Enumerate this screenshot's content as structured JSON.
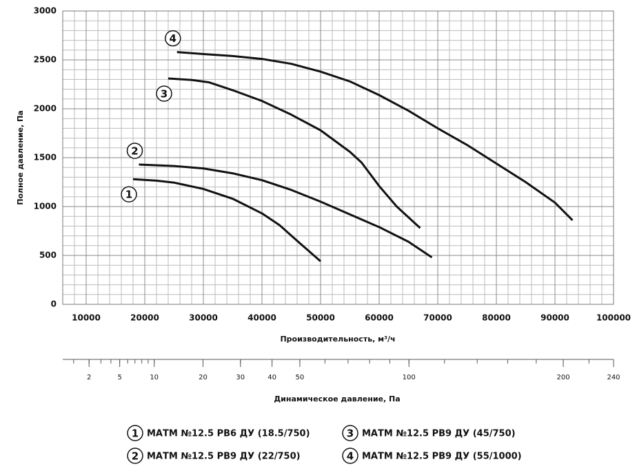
{
  "chart_data": {
    "type": "line",
    "ylabel": "Полное давление, Па",
    "xlabel": "Производительность, м³/ч",
    "xlim": [
      6000,
      100000
    ],
    "xticks": [
      10000,
      20000,
      30000,
      40000,
      50000,
      60000,
      70000,
      80000,
      90000,
      100000
    ],
    "ylim": [
      0,
      3000
    ],
    "yticks": [
      0,
      500,
      1000,
      1500,
      2000,
      2500,
      3000
    ],
    "grid": true,
    "series": [
      {
        "marker": "1",
        "name": "МАТМ №12.5 РВ6 ДУ (18.5/750)",
        "color": "#111111",
        "x": [
          18000,
          22000,
          25000,
          30000,
          35000,
          40000,
          43000,
          46000,
          50000
        ],
        "values": [
          1280,
          1265,
          1245,
          1180,
          1080,
          930,
          810,
          650,
          440
        ]
      },
      {
        "marker": "2",
        "name": "МАТМ №12.5 РВ9 ДУ (22/750)",
        "color": "#111111",
        "x": [
          19000,
          25000,
          30000,
          35000,
          40000,
          45000,
          50000,
          55000,
          60000,
          65000,
          69000
        ],
        "values": [
          1430,
          1415,
          1390,
          1340,
          1270,
          1170,
          1050,
          920,
          790,
          640,
          480
        ]
      },
      {
        "marker": "3",
        "name": "МАТМ №12.5 РВ9 ДУ (45/750)",
        "color": "#111111",
        "x": [
          24000,
          28000,
          31000,
          35000,
          40000,
          45000,
          50000,
          55000,
          57000,
          60000,
          63000,
          67000
        ],
        "values": [
          2310,
          2295,
          2270,
          2190,
          2080,
          1940,
          1780,
          1560,
          1450,
          1210,
          1000,
          780
        ]
      },
      {
        "marker": "4",
        "name": "МАТМ №12.5 РВ9 ДУ (55/1000)",
        "color": "#111111",
        "x": [
          25500,
          30000,
          35000,
          40000,
          45000,
          50000,
          55000,
          60000,
          65000,
          70000,
          75000,
          80000,
          85000,
          90000,
          93000
        ],
        "values": [
          2580,
          2560,
          2540,
          2510,
          2460,
          2380,
          2280,
          2140,
          1980,
          1800,
          1630,
          1440,
          1250,
          1040,
          860
        ]
      }
    ],
    "secondary_axis": {
      "label": "Динамическое давление, Па",
      "scale": "sqrt",
      "xlim": [
        0.5,
        240
      ],
      "xticks": [
        2,
        5,
        10,
        20,
        30,
        40,
        50,
        100,
        200,
        240
      ]
    }
  }
}
